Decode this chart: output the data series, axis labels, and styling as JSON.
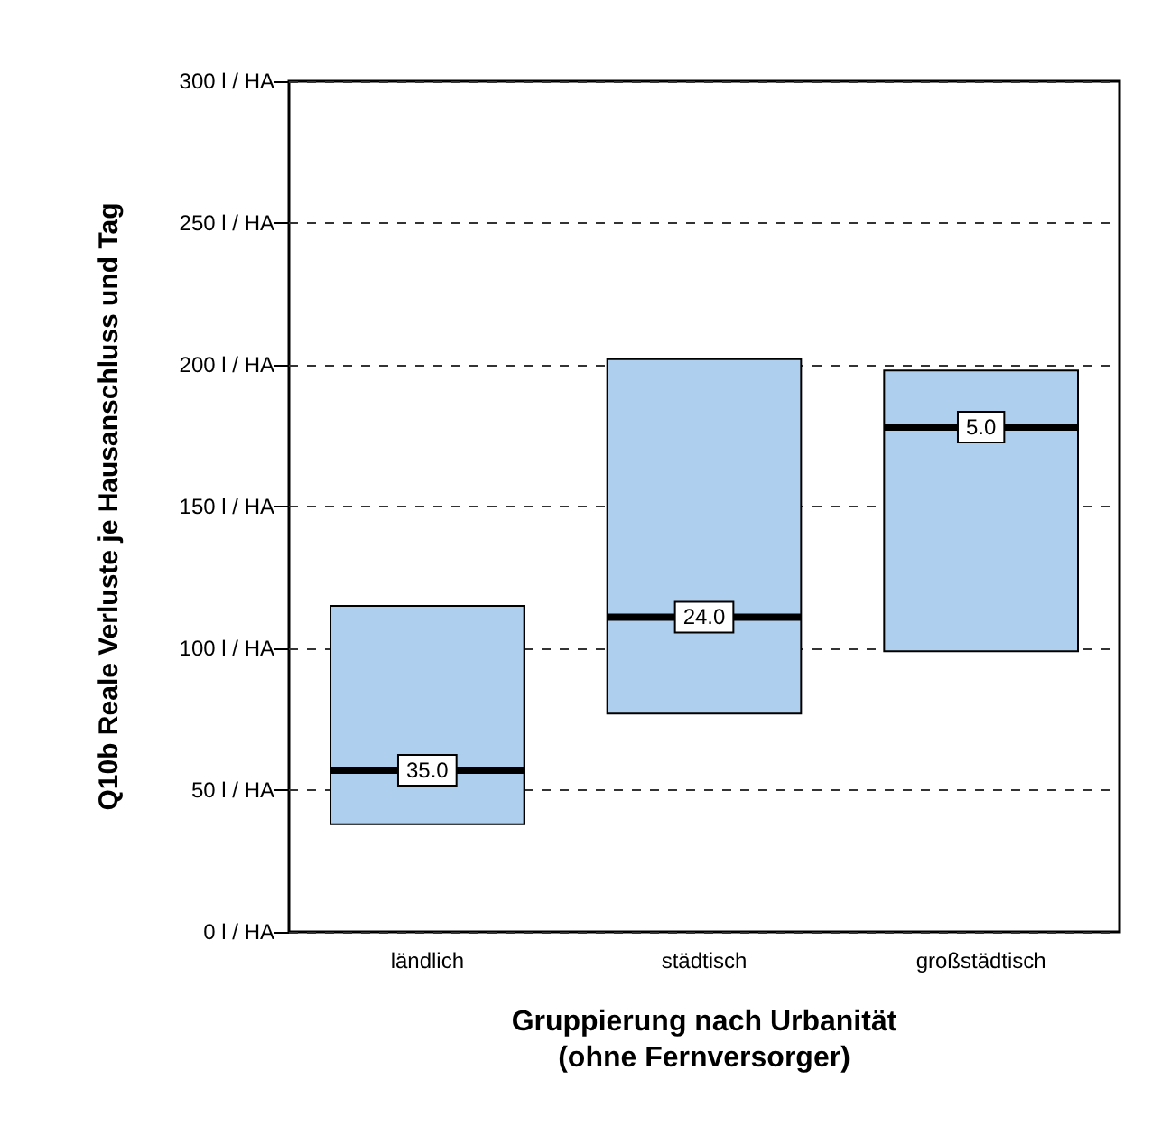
{
  "chart_data": {
    "type": "box",
    "xlabel": "Gruppierung nach Urbanität\n(ohne Fernversorger)",
    "ylabel": "Q10b Reale Verluste je Hausanschluss und Tag",
    "categories": [
      "ländlich",
      "städtisch",
      "großstädtisch"
    ],
    "boxes": [
      {
        "low": 38,
        "q1": 38,
        "median": 57,
        "q3": 115,
        "high": 115
      },
      {
        "low": 77,
        "q1": 77,
        "median": 111,
        "q3": 202,
        "high": 202
      },
      {
        "low": 99,
        "q1": 99,
        "median": 178,
        "q3": 198,
        "high": 198
      }
    ],
    "color": "#aecfed",
    "ylim": [
      0,
      300
    ],
    "yticks": [
      {
        "value": 0,
        "label": "0 l / HA"
      },
      {
        "value": 50,
        "label": "50 l / HA"
      },
      {
        "value": 100,
        "label": "100 l / HA"
      },
      {
        "value": 150,
        "label": "150 l / HA"
      },
      {
        "value": 200,
        "label": "200 l / HA"
      },
      {
        "value": 250,
        "label": "250 l / HA"
      },
      {
        "value": 300,
        "label": "300 l / HA"
      }
    ],
    "grid": "y",
    "annotations": [
      {
        "text": "35.0",
        "x": "ländlich",
        "y": 57
      },
      {
        "text": "24.0",
        "x": "städtisch",
        "y": 111
      },
      {
        "text": "5.0",
        "x": "großstädtisch",
        "y": 178
      }
    ]
  }
}
